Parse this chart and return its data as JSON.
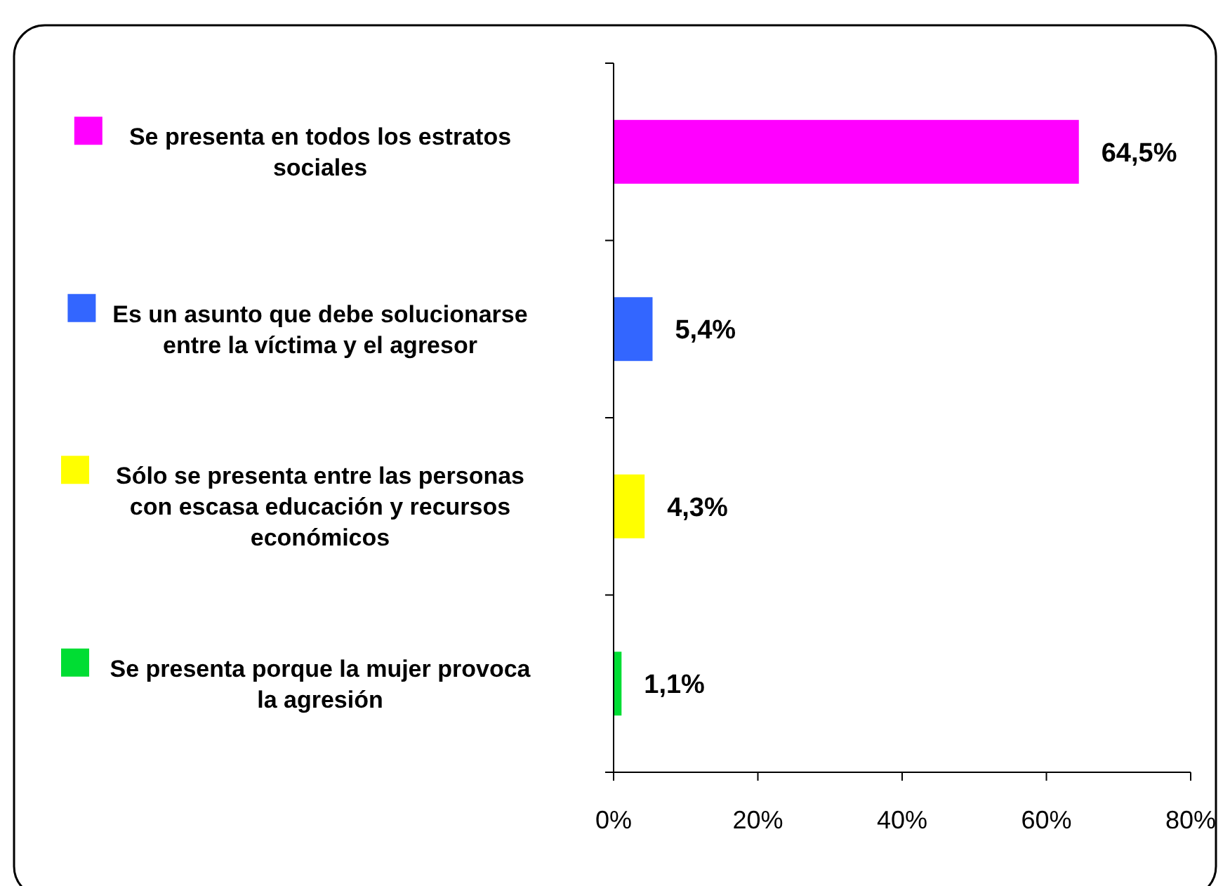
{
  "chart_data": {
    "type": "bar",
    "orientation": "horizontal",
    "categories": [
      "Se presenta en todos los estratos sociales",
      "Es un asunto que debe solucionarse entre la víctima y el agresor",
      "Sólo se presenta entre las personas con escasa educación y recursos económicos",
      "Se presenta porque la mujer provoca la agresión"
    ],
    "values": [
      64.5,
      5.4,
      4.3,
      1.1
    ],
    "colors": [
      "#ff00ff",
      "#3366ff",
      "#ffff00",
      "#00dd33"
    ],
    "value_labels": [
      "64,5%",
      "5,4%",
      "4,3%",
      "1,1%"
    ],
    "xlim": [
      0,
      80
    ],
    "xticks": [
      {
        "value": 0,
        "label": "0%"
      },
      {
        "value": 20,
        "label": "20%"
      },
      {
        "value": 40,
        "label": "40%"
      },
      {
        "value": 60,
        "label": "60%"
      },
      {
        "value": 80,
        "label": "80%"
      }
    ],
    "grid": false
  }
}
